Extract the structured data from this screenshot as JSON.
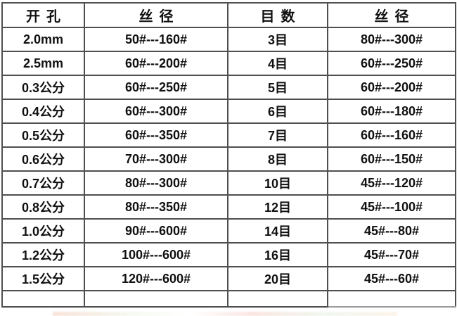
{
  "table": {
    "headers": [
      "开孔",
      "丝径",
      "目数",
      "丝径"
    ],
    "rows": [
      [
        "2.0mm",
        "50#---160#",
        "3目",
        "80#---300#"
      ],
      [
        "2.5mm",
        "60#---200#",
        "4目",
        "60#---250#"
      ],
      [
        "0.3公分",
        "60#---250#",
        "5目",
        "60#---200#"
      ],
      [
        "0.4公分",
        "60#---300#",
        "6目",
        "60#---180#"
      ],
      [
        "0.5公分",
        "60#---350#",
        "7目",
        "60#---160#"
      ],
      [
        "0.6公分",
        "70#---300#",
        "8目",
        "60#---150#"
      ],
      [
        "0.7公分",
        "80#---300#",
        "10目",
        "45#---120#"
      ],
      [
        "0.8公分",
        "80#---350#",
        "12目",
        "45#---100#"
      ],
      [
        "1.0公分",
        "90#---600#",
        "14目",
        "45#---80#"
      ],
      [
        "1.2公分",
        "100#---600#",
        "16目",
        "45#---70#"
      ],
      [
        "1.5公分",
        "120#---600#",
        "20目",
        "45#---60#"
      ]
    ],
    "border_color": "#4f4f4f",
    "text_color": "#111111",
    "background_color": "#ffffff"
  },
  "chart_data": {
    "type": "table",
    "columns": [
      "开孔",
      "丝径",
      "目数",
      "丝径"
    ],
    "rows": [
      [
        "2.0mm",
        "50#---160#",
        "3目",
        "80#---300#"
      ],
      [
        "2.5mm",
        "60#---200#",
        "4目",
        "60#---250#"
      ],
      [
        "0.3公分",
        "60#---250#",
        "5目",
        "60#---200#"
      ],
      [
        "0.4公分",
        "60#---300#",
        "6目",
        "60#---180#"
      ],
      [
        "0.5公分",
        "60#---350#",
        "7目",
        "60#---160#"
      ],
      [
        "0.6公分",
        "70#---300#",
        "8目",
        "60#---150#"
      ],
      [
        "0.7公分",
        "80#---300#",
        "10目",
        "45#---120#"
      ],
      [
        "0.8公分",
        "80#---350#",
        "12目",
        "45#---100#"
      ],
      [
        "1.0公分",
        "90#---600#",
        "14目",
        "45#---80#"
      ],
      [
        "1.2公分",
        "100#---600#",
        "16目",
        "45#---70#"
      ],
      [
        "1.5公分",
        "120#---600#",
        "20目",
        "45#---60#"
      ]
    ]
  }
}
